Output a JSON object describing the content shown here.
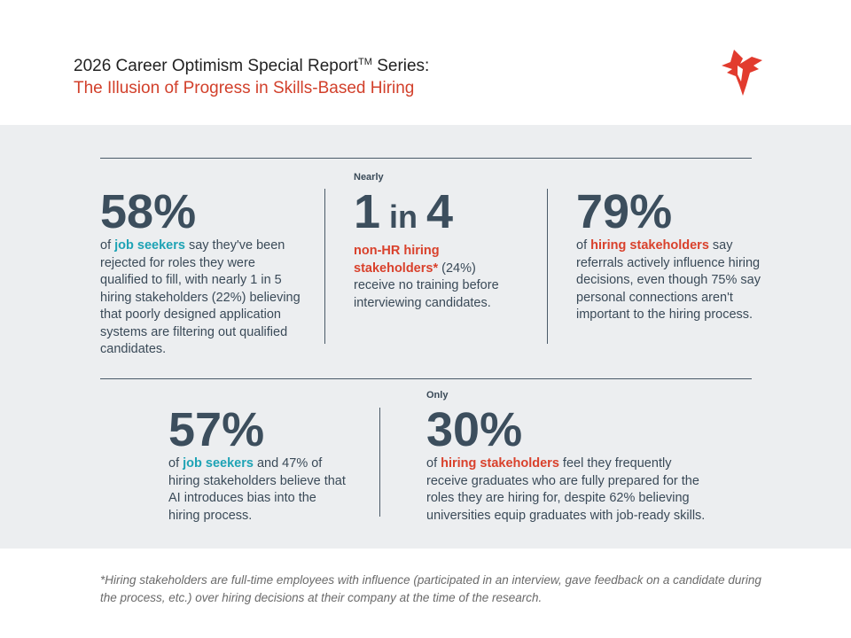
{
  "header": {
    "title": "2026 Career Optimism Special Report",
    "title_mark": "TM",
    "title_end": " Series:",
    "subtitle": "The Illusion of Progress in Skills-Based Hiring"
  },
  "stats": [
    {
      "pre": null,
      "big": [
        {
          "text": "58%"
        }
      ],
      "body": [
        {
          "text": "of "
        },
        {
          "text": "job seekers",
          "color": "#1ea3b5"
        },
        {
          "text": " say they've been rejected for roles they were qualified to fill, with nearly 1 in 5 hiring stakeholders (22%) believing that poorly designed application systems are filtering out qualified candidates."
        }
      ]
    },
    {
      "pre": "Nearly",
      "big": [
        {
          "text": "1"
        },
        {
          "text": " in ",
          "small": true
        },
        {
          "text": "4"
        }
      ],
      "body": [
        {
          "text": "non-HR hiring stakeholders*",
          "color": "#d9412c"
        },
        {
          "text": " (24%) receive no training before interviewing candidates."
        }
      ]
    },
    {
      "pre": null,
      "big": [
        {
          "text": "79%"
        }
      ],
      "body": [
        {
          "text": "of "
        },
        {
          "text": "hiring stakeholders",
          "color": "#d9412c"
        },
        {
          "text": " say referrals actively influence hiring decisions, even though 75% say personal connections aren't important to the hiring process."
        }
      ]
    },
    {
      "pre": null,
      "big": [
        {
          "text": "57%"
        }
      ],
      "body": [
        {
          "text": "of "
        },
        {
          "text": "job seekers",
          "color": "#1ea3b5"
        },
        {
          "text": " and 47% of hiring stakeholders believe that AI introduces bias into the hiring process."
        }
      ]
    },
    {
      "pre": "Only",
      "big": [
        {
          "text": "30%"
        }
      ],
      "body": [
        {
          "text": "of "
        },
        {
          "text": "hiring stakeholders",
          "color": "#d9412c"
        },
        {
          "text": " feel they frequently receive graduates who are fully prepared for the roles they are hiring for, despite 62% believing universities equip graduates with job-ready skills."
        }
      ]
    }
  ],
  "footnote": "*Hiring stakeholders are full-time employees with influence (participated in an interview, gave feedback on a candidate during the process, etc.) over hiring decisions at their company at the time of the research."
}
